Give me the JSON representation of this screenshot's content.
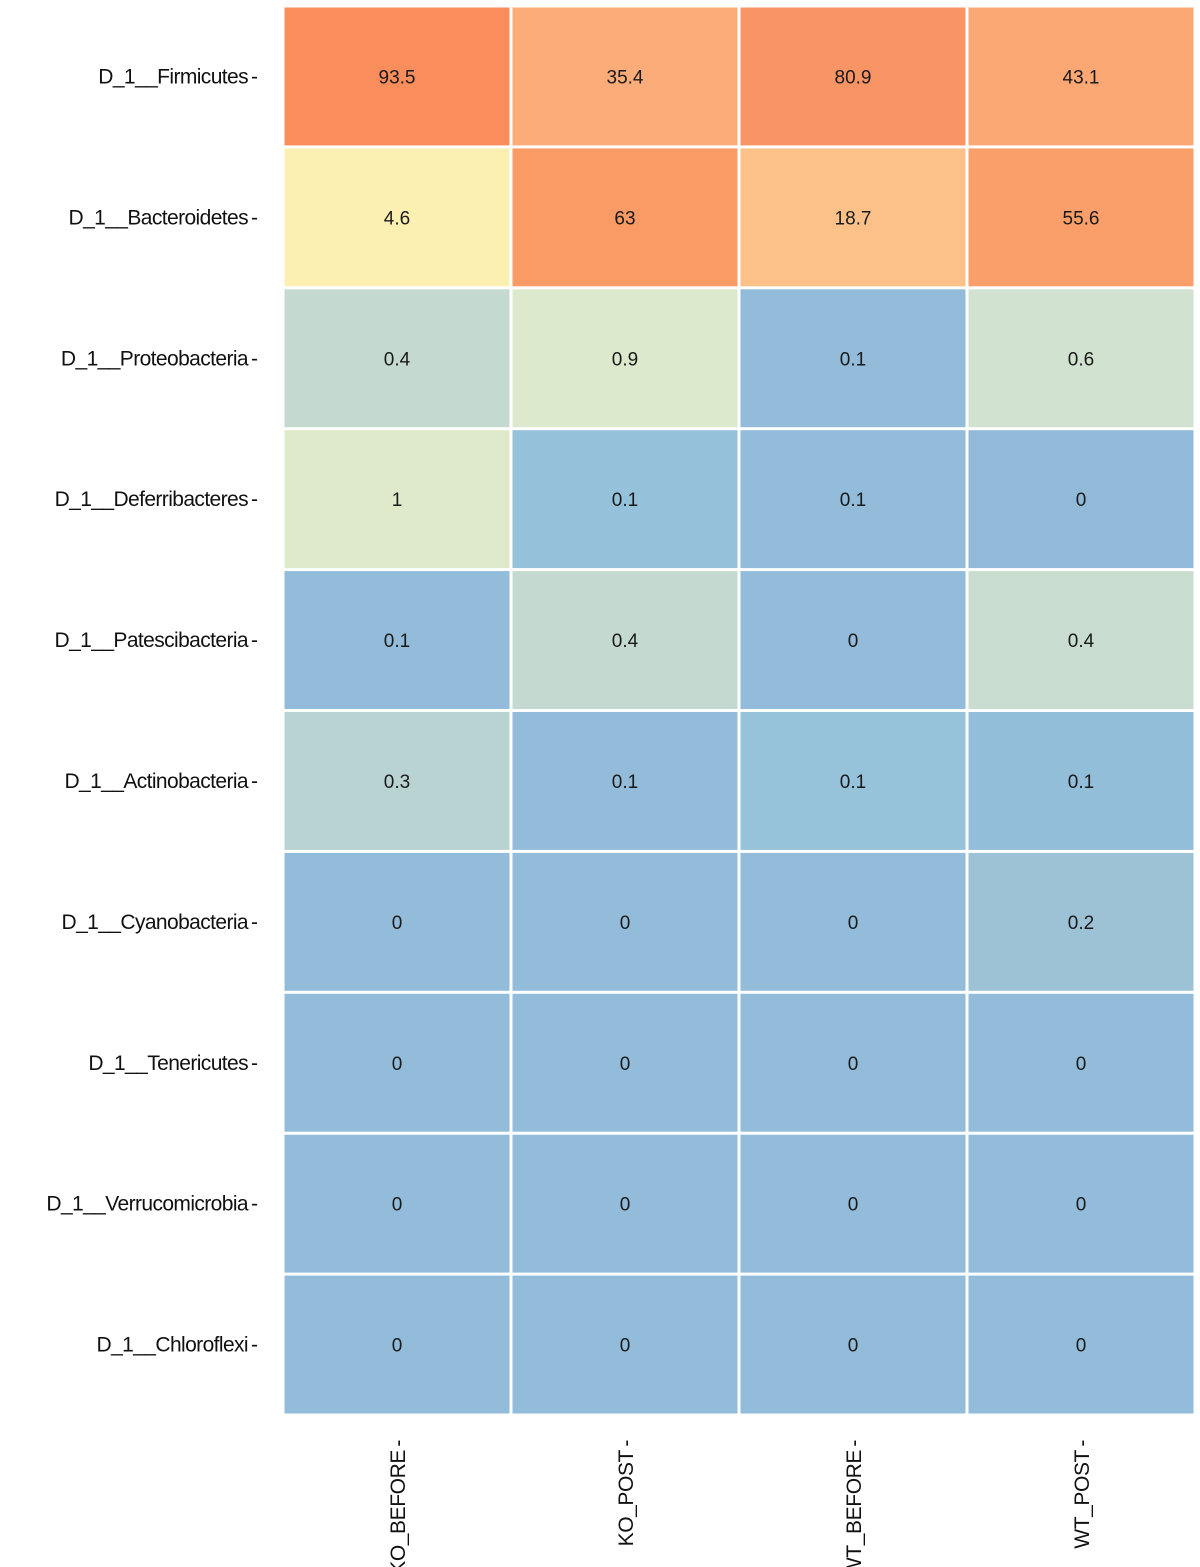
{
  "chart_data": {
    "type": "heatmap",
    "title": "",
    "xlabel": "",
    "ylabel": "",
    "grid": false,
    "legend": "none",
    "columns": [
      "KO_BEFORE",
      "KO_POST",
      "WT_BEFORE",
      "WT_POST"
    ],
    "rows": [
      "D_1__Firmicutes",
      "D_1__Bacteroidetes",
      "D_1__Proteobacteria",
      "D_1__Deferribacteres",
      "D_1__Patescibacteria",
      "D_1__Actinobacteria",
      "D_1__Cyanobacteria",
      "D_1__Tenericutes",
      "D_1__Verrucomicrobia",
      "D_1__Chloroflexi"
    ],
    "values": [
      [
        93.5,
        35.4,
        80.9,
        43.1
      ],
      [
        4.6,
        63,
        18.7,
        55.6
      ],
      [
        0.4,
        0.9,
        0.1,
        0.6
      ],
      [
        1,
        0.1,
        0.1,
        0
      ],
      [
        0.1,
        0.4,
        0,
        0.4
      ],
      [
        0.3,
        0.1,
        0.1,
        0.1
      ],
      [
        0,
        0,
        0,
        0.2
      ],
      [
        0,
        0,
        0,
        0
      ],
      [
        0,
        0,
        0,
        0
      ],
      [
        0,
        0,
        0,
        0
      ]
    ],
    "cell_colors": [
      [
        "#f98d5b",
        "#fcac78",
        "#f99565",
        "#fca874"
      ],
      [
        "#fbf0b2",
        "#fa9a65",
        "#fcc189",
        "#fa9f69"
      ],
      [
        "#c4d9d0",
        "#dce9cd",
        "#92bcd9",
        "#d1e2d1"
      ],
      [
        "#dfeaca",
        "#95c1db",
        "#92bcd9",
        "#90bad8"
      ],
      [
        "#92bcd9",
        "#c4d9d0",
        "#92bcd9",
        "#c8dccf"
      ],
      [
        "#b9d3d2",
        "#92bcd9",
        "#96c2da",
        "#93bed9"
      ],
      [
        "#92bcd9",
        "#92bcd9",
        "#92bcd9",
        "#9ec2d5"
      ],
      [
        "#92bcd9",
        "#92bcd9",
        "#92bcd9",
        "#92bcd9"
      ],
      [
        "#92bcd9",
        "#92bcd9",
        "#92bcd9",
        "#92bcd9"
      ],
      [
        "#92bcd9",
        "#92bcd9",
        "#92bcd9",
        "#92bcd9"
      ]
    ],
    "tick_mark": "-"
  }
}
